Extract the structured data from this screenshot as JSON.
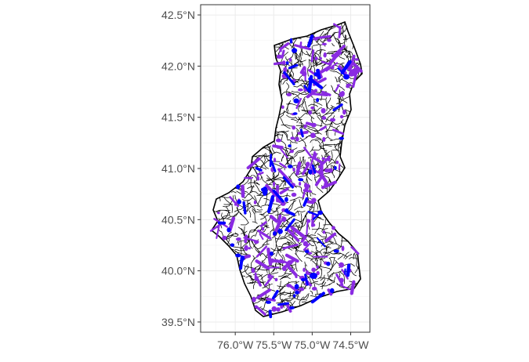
{
  "map": {
    "colors": {
      "background": "#ffffff",
      "panel_border": "#333333",
      "grid": "#ebebeb",
      "streams": "#000000",
      "site_purple": "#8a2be2",
      "site_blue": "#0000ff",
      "tick_text": "#4d4d4d"
    },
    "y_axis": {
      "min": 39.4,
      "max": 42.6,
      "ticks": [
        {
          "value": 42.5,
          "label": "42.5°N"
        },
        {
          "value": 42.0,
          "label": "42.0°N"
        },
        {
          "value": 41.5,
          "label": "41.5°N"
        },
        {
          "value": 41.0,
          "label": "41.0°N"
        },
        {
          "value": 40.5,
          "label": "40.5°N"
        },
        {
          "value": 40.0,
          "label": "40.0°N"
        },
        {
          "value": 39.5,
          "label": "39.5°N"
        }
      ]
    },
    "x_axis": {
      "min": -76.45,
      "max": -74.25,
      "ticks": [
        {
          "value": -76.0,
          "label": "76.0°W"
        },
        {
          "value": -75.5,
          "label": "75.5°W"
        },
        {
          "value": -75.0,
          "label": "75.0°W"
        },
        {
          "value": -74.5,
          "label": "74.5°W"
        }
      ]
    }
  }
}
